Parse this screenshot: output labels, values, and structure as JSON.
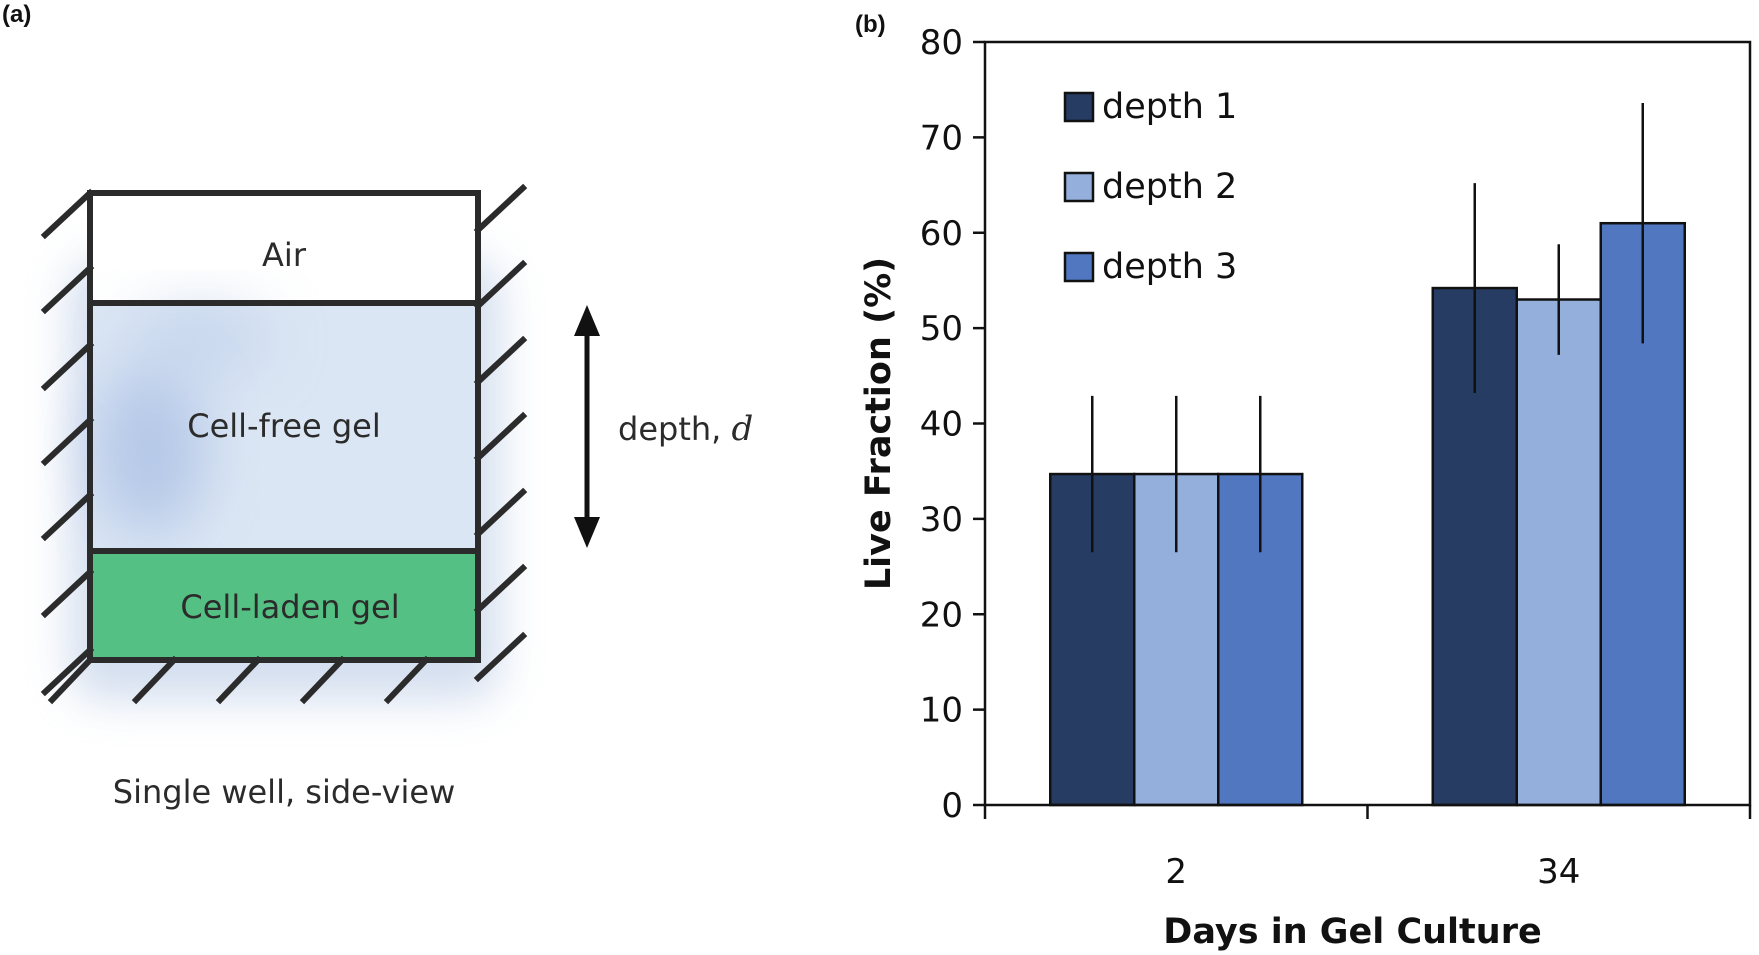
{
  "panel_a": {
    "label": "(a)",
    "layers": {
      "air": "Air",
      "cell_free": "Cell-free gel",
      "cell_laden": "Cell-laden gel"
    },
    "depth_label": "depth, ",
    "depth_symbol": "d",
    "caption": "Single well, side-view",
    "colors": {
      "cell_free": "#dbe6f4",
      "cell_laden": "#55c083",
      "wall": "#2b2b2b"
    }
  },
  "panel_b": {
    "label": "(b)"
  },
  "chart_data": {
    "type": "bar",
    "title": "",
    "xlabel": "Days in Gel Culture",
    "ylabel": "Live Fraction (%)",
    "categories": [
      "2",
      "34"
    ],
    "ylim": [
      0,
      80
    ],
    "yticks": [
      0,
      10,
      20,
      30,
      40,
      50,
      60,
      70,
      80
    ],
    "grid": false,
    "legend_position": "top-left",
    "series": [
      {
        "name": "depth 1",
        "color": "#263c63",
        "values": [
          34.7,
          54.2
        ],
        "errors": [
          8.2,
          11.0
        ]
      },
      {
        "name": "depth 2",
        "color": "#94afdc",
        "values": [
          34.7,
          53.0
        ],
        "errors": [
          8.2,
          5.8
        ]
      },
      {
        "name": "depth 3",
        "color": "#5177c1",
        "values": [
          34.7,
          61.0
        ],
        "errors": [
          8.2,
          12.6
        ]
      }
    ]
  }
}
